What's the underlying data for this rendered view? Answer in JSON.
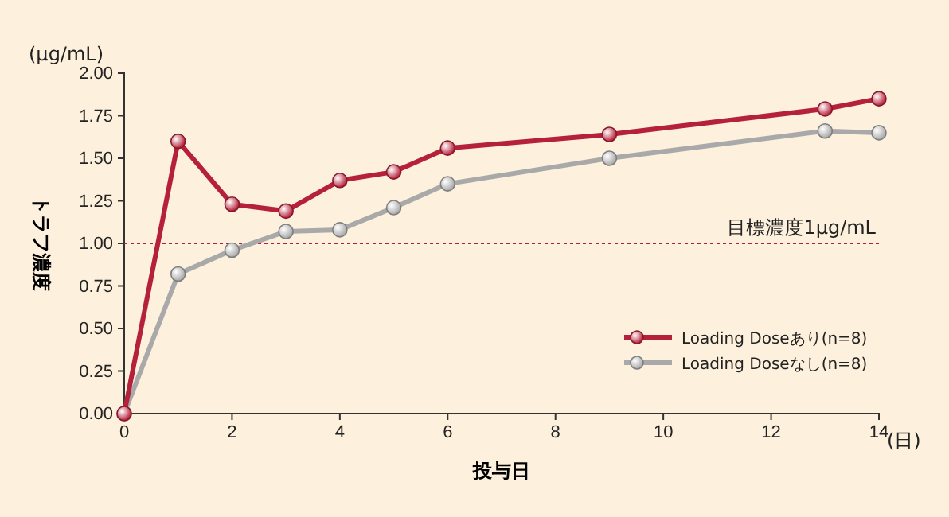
{
  "chart_data": {
    "type": "line",
    "xlabel": "投与日",
    "ylabel": "トラフ濃度",
    "annotations": [
      "(μg/mL)",
      "(日)"
    ],
    "series": [
      {
        "name": "Loading Doseあり(n=8)",
        "color": "#b5203a",
        "x": [
          0,
          1,
          2,
          3,
          4,
          5,
          6,
          9,
          13,
          14
        ],
        "values": [
          0,
          1.6,
          1.23,
          1.19,
          1.37,
          1.42,
          1.56,
          1.64,
          1.79,
          1.85
        ]
      },
      {
        "name": "Loading Doseなし(n=8)",
        "color": "#a9a9a9",
        "x": [
          0,
          1,
          2,
          3,
          4,
          5,
          6,
          9,
          13,
          14
        ],
        "values": [
          0,
          0.82,
          0.96,
          1.07,
          1.08,
          1.21,
          1.35,
          1.5,
          1.66,
          1.65
        ]
      }
    ],
    "xlim": [
      0,
      14
    ],
    "xticks": [
      0,
      2,
      4,
      6,
      8,
      10,
      12,
      14
    ],
    "ylim": [
      0,
      2
    ],
    "yticks": [
      {
        "value": 0,
        "label": "0.00"
      },
      {
        "value": 0.25,
        "label": "0.25"
      },
      {
        "value": 0.5,
        "label": "0.50"
      },
      {
        "value": 0.75,
        "label": "0.75"
      },
      {
        "value": 1,
        "label": "1.00"
      },
      {
        "value": 1.25,
        "label": "1.25"
      },
      {
        "value": 1.5,
        "label": "1.50"
      },
      {
        "value": 1.75,
        "label": "1.75"
      },
      {
        "value": 2,
        "label": "2.00"
      }
    ],
    "ref_lines": [
      {
        "axis": "y",
        "value": 1,
        "label": "目標濃度1μg/mL",
        "color": "#b5203a",
        "line_style": "dotted"
      }
    ],
    "legend": "right",
    "marker": "circle",
    "line_style": "solid"
  }
}
